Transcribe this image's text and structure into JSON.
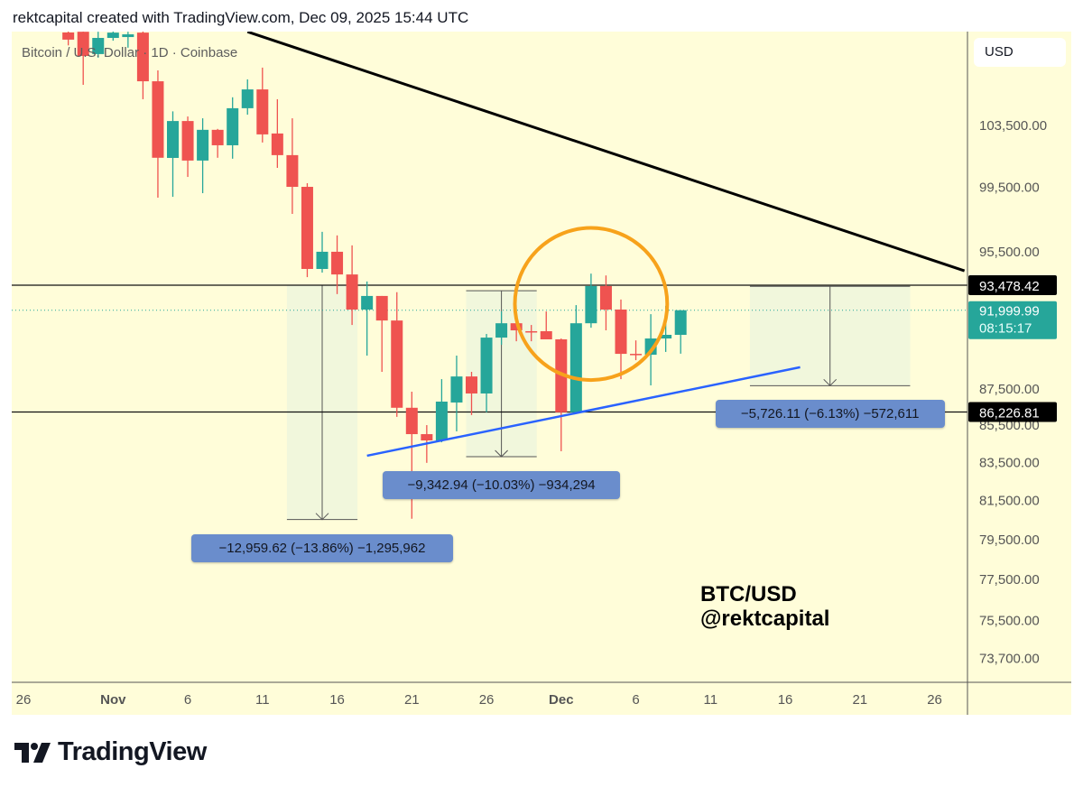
{
  "header": {
    "caption": "rektcapital created with TradingView.com, Dec 09, 2025 15:44 UTC"
  },
  "symbol_label": "Bitcoin / U.S. Dollar · 1D · Coinbase",
  "currency_button": "USD",
  "watermark": {
    "line1": "BTC/USD",
    "line2": "@rektcapital"
  },
  "brand": {
    "name": "TradingView"
  },
  "colors": {
    "up": "#26a69a",
    "down": "#ef5350",
    "background": "#fffdd9",
    "trendline": "#000000",
    "support_line": "#2962ff",
    "circle": "#f7a21b",
    "label_bg": "#6a8dcc"
  },
  "chart_data": {
    "type": "candlestick",
    "title": "Bitcoin / U.S. Dollar · 1D · Coinbase",
    "scale": "log",
    "yaxis_ticks": [
      103500,
      99500,
      95500,
      87500,
      85500,
      83500,
      81500,
      79500,
      77500,
      75500,
      73700
    ],
    "yaxis_tick_labels": [
      "103,500.00",
      "99,500.00",
      "95,500.00",
      "87,500.00",
      "85,500.00",
      "83,500.00",
      "81,500.00",
      "79,500.00",
      "77,500.00",
      "75,500.00",
      "73,700.00"
    ],
    "xaxis_ticks": [
      {
        "date": "2025-10-26",
        "label": "26"
      },
      {
        "date": "2025-11-01",
        "label": "Nov"
      },
      {
        "date": "2025-11-06",
        "label": "6"
      },
      {
        "date": "2025-11-11",
        "label": "11"
      },
      {
        "date": "2025-11-16",
        "label": "16"
      },
      {
        "date": "2025-11-21",
        "label": "21"
      },
      {
        "date": "2025-11-26",
        "label": "26"
      },
      {
        "date": "2025-12-01",
        "label": "Dec"
      },
      {
        "date": "2025-12-06",
        "label": "6"
      },
      {
        "date": "2025-12-11",
        "label": "11"
      },
      {
        "date": "2025-12-16",
        "label": "16"
      },
      {
        "date": "2025-12-21",
        "label": "21"
      },
      {
        "date": "2025-12-26",
        "label": "26"
      }
    ],
    "candles_columns": [
      "date",
      "open",
      "high",
      "low",
      "close"
    ],
    "candles": [
      [
        "2025-10-29",
        109800,
        109900,
        108900,
        109300
      ],
      [
        "2025-10-30",
        109850,
        110100,
        106200,
        108170
      ],
      [
        "2025-10-31",
        108300,
        109850,
        108050,
        109420
      ],
      [
        "2025-11-01",
        109420,
        109900,
        109230,
        109790
      ],
      [
        "2025-11-02",
        109480,
        109850,
        108740,
        109670
      ],
      [
        "2025-11-03",
        109790,
        109910,
        105230,
        106440
      ],
      [
        "2025-11-04",
        106440,
        107180,
        98840,
        101380
      ],
      [
        "2025-11-05",
        101370,
        104420,
        98890,
        103780
      ],
      [
        "2025-11-06",
        103780,
        104080,
        100150,
        101200
      ],
      [
        "2025-11-07",
        101200,
        103960,
        99120,
        103200
      ],
      [
        "2025-11-08",
        103200,
        103260,
        101380,
        102190
      ],
      [
        "2025-11-09",
        102190,
        105360,
        101320,
        104630
      ],
      [
        "2025-11-10",
        104630,
        106570,
        104200,
        105890
      ],
      [
        "2025-11-11",
        105890,
        107370,
        102370,
        102900
      ],
      [
        "2025-11-12",
        102960,
        105230,
        100730,
        101550
      ],
      [
        "2025-11-13",
        101550,
        103960,
        97820,
        99520
      ],
      [
        "2025-11-14",
        99520,
        99750,
        93960,
        94450
      ],
      [
        "2025-11-15",
        94450,
        96710,
        94230,
        95490
      ],
      [
        "2025-11-16",
        95490,
        96490,
        92950,
        94120
      ],
      [
        "2025-11-17",
        94120,
        95880,
        91140,
        92040
      ],
      [
        "2025-11-18",
        92040,
        93700,
        89380,
        92840
      ],
      [
        "2025-11-19",
        92840,
        92840,
        88460,
        91400
      ],
      [
        "2025-11-20",
        91400,
        93060,
        85960,
        86460
      ],
      [
        "2025-11-21",
        86460,
        87350,
        80560,
        85020
      ],
      [
        "2025-11-22",
        85020,
        85510,
        83480,
        84680
      ],
      [
        "2025-11-23",
        84680,
        88050,
        84580,
        86800
      ],
      [
        "2025-11-24",
        86750,
        89380,
        85170,
        88200
      ],
      [
        "2025-11-25",
        88200,
        88460,
        86060,
        87250
      ],
      [
        "2025-11-26",
        87250,
        90620,
        86210,
        90410
      ],
      [
        "2025-11-27",
        90410,
        91930,
        90000,
        91240
      ],
      [
        "2025-11-28",
        91240,
        91300,
        90200,
        90830
      ],
      [
        "2025-11-29",
        90780,
        91140,
        90200,
        90730
      ],
      [
        "2025-11-30",
        90780,
        91930,
        90310,
        90310
      ],
      [
        "2025-12-01",
        90310,
        90360,
        84100,
        86210
      ],
      [
        "2025-12-02",
        86210,
        92300,
        86210,
        91240
      ],
      [
        "2025-12-03",
        91240,
        94170,
        90980,
        93430
      ],
      [
        "2025-12-04",
        93430,
        94060,
        90830,
        92040
      ],
      [
        "2025-12-05",
        92040,
        92630,
        88050,
        89480
      ],
      [
        "2025-12-06",
        89480,
        90250,
        89120,
        89430
      ],
      [
        "2025-12-07",
        89430,
        91770,
        87700,
        90360
      ],
      [
        "2025-12-08",
        90360,
        92250,
        89590,
        90570
      ],
      [
        "2025-12-09",
        90570,
        92000,
        89490,
        91999.99
      ]
    ],
    "horizontal_levels": [
      {
        "price": 93478.42,
        "label": "93,478.42"
      },
      {
        "price": 86226.81,
        "label": "86,226.81"
      }
    ],
    "last_price": {
      "price": 91999.99,
      "label": "91,999.99",
      "countdown": "08:15:17"
    },
    "trendlines": [
      {
        "name": "descending-resistance",
        "from": [
          "2025-11-10",
          109850
        ],
        "to": [
          "2025-12-28",
          94340
        ],
        "color": "#000000"
      },
      {
        "name": "ascending-support",
        "from": [
          "2025-11-18",
          83860
        ],
        "to": [
          "2025-12-17",
          88720
        ],
        "color": "#2962ff"
      }
    ],
    "circle": {
      "center": [
        "2025-12-03",
        92800
      ],
      "half_width_days": 5.1,
      "top_price": 96950,
      "bottom_price": 88000
    },
    "measurements": [
      {
        "from_date": "2025-11-13",
        "to_date": "2025-11-17",
        "top": 93478.42,
        "bottom": 80518.8,
        "label": "−12,959.62 (−13.86%) −1,295,962"
      },
      {
        "from_date": "2025-11-25",
        "to_date": "2025-11-29",
        "top": 93150,
        "bottom": 83807,
        "label": "−9,342.94 (−10.03%) −934,294"
      },
      {
        "from_date": "2025-12-14",
        "to_date": "2025-12-24",
        "top": 93411,
        "bottom": 87685,
        "label": "−5,726.11 (−6.13%) −572,611"
      }
    ]
  }
}
